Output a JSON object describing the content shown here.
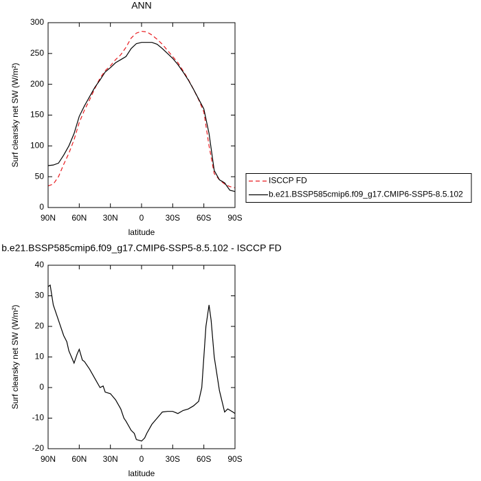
{
  "chart_data": [
    {
      "type": "line",
      "title": "ANN",
      "xlabel": "latitude",
      "ylabel": "Surf clearsky net SW (W/m²)",
      "x": [
        90,
        85,
        80,
        75,
        70,
        65,
        60,
        55,
        50,
        45,
        40,
        35,
        30,
        25,
        20,
        15,
        10,
        5,
        0,
        -5,
        -10,
        -15,
        -20,
        -25,
        -30,
        -35,
        -40,
        -45,
        -50,
        -55,
        -60,
        -65,
        -70,
        -75,
        -80,
        -85,
        -90
      ],
      "series": [
        {
          "name": "ISCCP FD",
          "color": "#e8191d",
          "dashed": true,
          "values": [
            35,
            38,
            50,
            70,
            88,
            110,
            138,
            158,
            175,
            193,
            210,
            222,
            230,
            240,
            248,
            260,
            275,
            283,
            286,
            285,
            280,
            273,
            265,
            255,
            245,
            235,
            222,
            208,
            192,
            175,
            155,
            100,
            55,
            45,
            38,
            34,
            32
          ]
        },
        {
          "name": "b.e21.BSSP585cmip6.f09_g17.CMIP6-SSP5-8.5.102",
          "color": "#000000",
          "dashed": false,
          "values": [
            68,
            69,
            72,
            85,
            100,
            120,
            148,
            165,
            180,
            195,
            207,
            220,
            227,
            235,
            240,
            245,
            258,
            266,
            268,
            268,
            268,
            265,
            258,
            250,
            242,
            232,
            220,
            207,
            192,
            176,
            160,
            120,
            60,
            45,
            40,
            28,
            26
          ]
        }
      ],
      "xlim": [
        90,
        -90
      ],
      "xticks": [
        {
          "value": 90,
          "label": "90N"
        },
        {
          "value": 60,
          "label": "60N"
        },
        {
          "value": 30,
          "label": "30N"
        },
        0,
        {
          "value": -30,
          "label": "30S"
        },
        {
          "value": -60,
          "label": "60S"
        },
        {
          "value": -90,
          "label": "90S"
        }
      ],
      "ylim": [
        0,
        300
      ],
      "yticks": [
        0,
        50,
        100,
        150,
        200,
        250,
        300
      ],
      "legend": "right"
    },
    {
      "type": "line",
      "title": "b.e21.BSSP585cmip6.f09_g17.CMIP6-SSP5-8.5.102 - ISCCP FD",
      "xlabel": "latitude",
      "ylabel": "Surf clearsky net SW (W/m²)",
      "x": [
        90,
        88,
        85,
        80,
        75,
        72,
        70,
        65,
        62,
        60,
        57,
        55,
        50,
        45,
        40,
        37,
        35,
        30,
        25,
        20,
        17,
        15,
        10,
        7,
        5,
        0,
        -3,
        -5,
        -10,
        -15,
        -20,
        -25,
        -30,
        -35,
        -40,
        -45,
        -50,
        -55,
        -58,
        -62,
        -65,
        -67,
        -70,
        -75,
        -80,
        -83,
        -88,
        -90
      ],
      "series": [
        {
          "color": "#000000",
          "dashed": false,
          "values": [
            33,
            33.5,
            27,
            22,
            17,
            15,
            12,
            8,
            11,
            12.5,
            9,
            8.5,
            6,
            3,
            0,
            0.5,
            -1.5,
            -2,
            -4,
            -7,
            -10,
            -11,
            -14,
            -15,
            -17,
            -17.5,
            -16.5,
            -15,
            -12,
            -10,
            -8,
            -7.8,
            -7.8,
            -8.5,
            -7.5,
            -7,
            -6,
            -4.5,
            0,
            20,
            27,
            22,
            10,
            -1,
            -8,
            -7,
            -8,
            -8.5
          ]
        }
      ],
      "xlim": [
        90,
        -90
      ],
      "xticks": [
        {
          "value": 90,
          "label": "90N"
        },
        {
          "value": 60,
          "label": "60N"
        },
        {
          "value": 30,
          "label": "30N"
        },
        0,
        {
          "value": -30,
          "label": "30S"
        },
        {
          "value": -60,
          "label": "60S"
        },
        {
          "value": -90,
          "label": "90S"
        }
      ],
      "ylim": [
        -20,
        40
      ],
      "yticks": [
        -20,
        -10,
        0,
        10,
        20,
        30,
        40
      ]
    }
  ]
}
